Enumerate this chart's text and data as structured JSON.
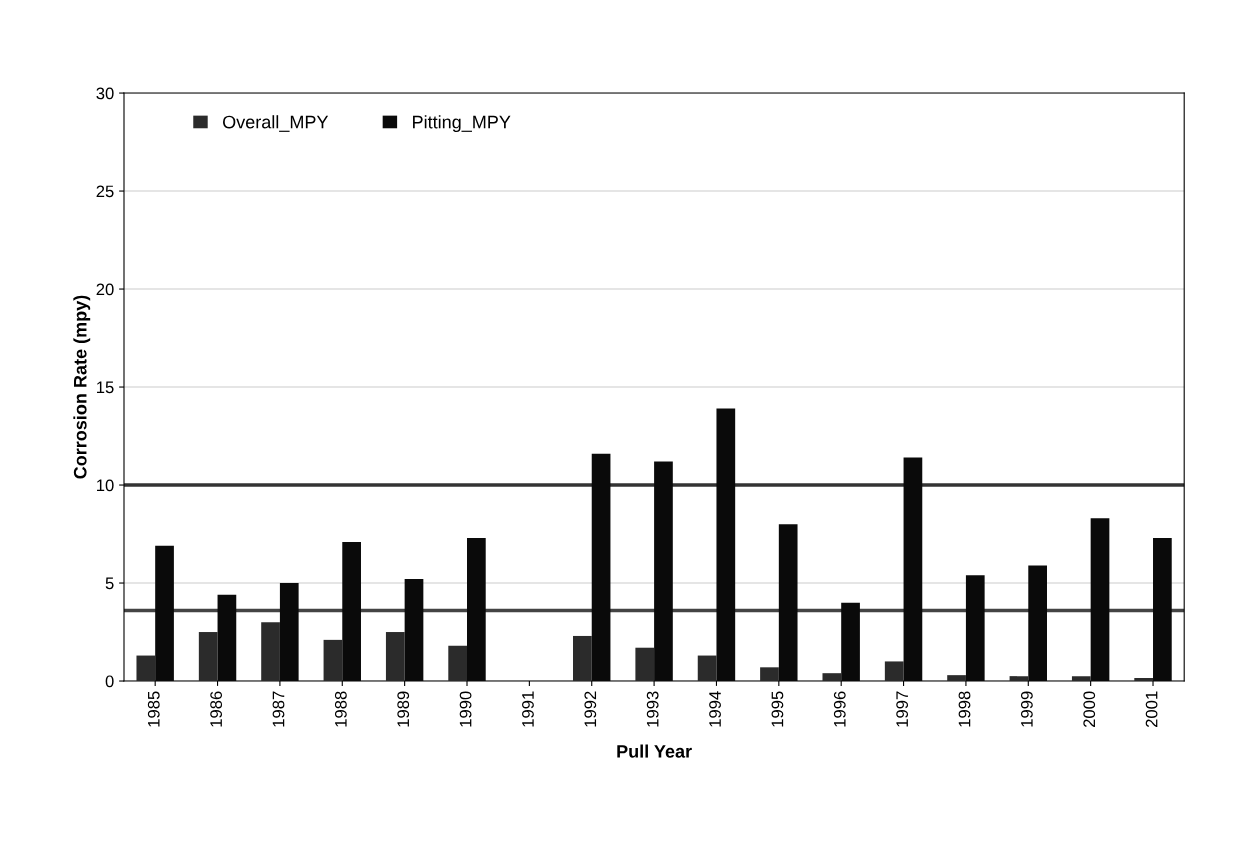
{
  "chart_data": {
    "type": "bar",
    "xlabel": "Pull Year",
    "ylabel": "Corrosion Rate (mpy)",
    "categories": [
      "1985",
      "1986",
      "1987",
      "1988",
      "1989",
      "1990",
      "1991",
      "1992",
      "1993",
      "1994",
      "1995",
      "1996",
      "1997",
      "1998",
      "1999",
      "2000",
      "2001"
    ],
    "series": [
      {
        "name": "Overall_MPY",
        "color": "#2b2b2b",
        "values": [
          1.3,
          2.5,
          3.0,
          2.1,
          2.5,
          1.8,
          null,
          2.3,
          1.7,
          1.3,
          0.7,
          0.4,
          1.0,
          0.3,
          0.25,
          0.25,
          0.15
        ]
      },
      {
        "name": "Pitting_MPY",
        "color": "#0a0a0a",
        "values": [
          6.9,
          4.4,
          5.0,
          7.1,
          5.2,
          7.3,
          null,
          11.6,
          11.2,
          13.9,
          8.0,
          4.0,
          11.4,
          5.4,
          5.9,
          8.3,
          7.3
        ]
      }
    ],
    "ylim": [
      0,
      30
    ],
    "yticks": [
      0,
      5,
      10,
      15,
      20,
      25,
      30
    ],
    "grid": "y",
    "legend": "top left",
    "ref_lines": [
      {
        "axis": "y",
        "value": 10,
        "color": "#333333"
      },
      {
        "axis": "y",
        "value": 3.6,
        "color": "#444444"
      }
    ]
  }
}
